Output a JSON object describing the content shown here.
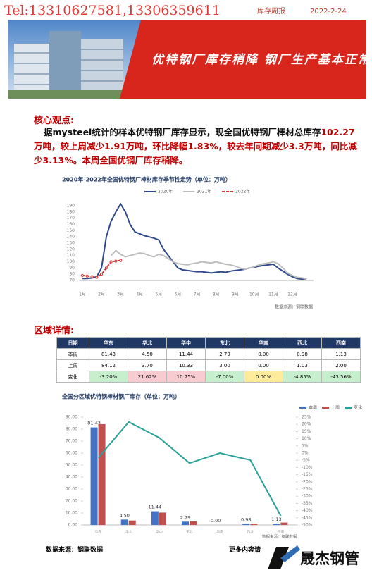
{
  "header": {
    "phone": "Tel:13310627581,13306359611",
    "title": "库存周报",
    "date": "2022-2-24"
  },
  "banner": {
    "headline": "优特钢厂库存稍降 钢厂生产基本正常"
  },
  "core": {
    "heading": "核心观点:",
    "paragraph": [
      {
        "text": "据mysteel统计的样本优特钢厂库存显示，现全国优特钢厂棒材总库存",
        "highlight": false
      },
      {
        "text": "102.27万吨，较上周减少1.91万吨，环比降幅1.83%，较去年同期减少3.3万吨，同比减少3.13%。本周全国优钢厂库存稍降。",
        "highlight": true
      }
    ]
  },
  "chart_data": [
    {
      "type": "line",
      "title": "2020年-2022年全国优特钢厂棒材库存季节性走势（单位：万吨）",
      "categories": [
        "1月",
        null,
        null,
        null,
        "2月",
        null,
        null,
        null,
        "3月",
        null,
        null,
        null,
        "4月",
        null,
        null,
        null,
        "5月",
        null,
        null,
        null,
        "6月",
        null,
        null,
        null,
        "7月",
        null,
        null,
        null,
        "8月",
        null,
        null,
        null,
        "9月",
        null,
        null,
        null,
        "10月",
        null,
        null,
        null,
        "11月",
        null,
        null,
        null,
        "12月",
        null,
        null,
        null
      ],
      "series": [
        {
          "name": "2020年",
          "color": "#2e4a8b",
          "values": [
            73,
            73,
            74,
            76,
            90,
            140,
            165,
            180,
            193,
            180,
            160,
            148,
            145,
            142,
            140,
            138,
            135,
            120,
            110,
            100,
            90,
            87,
            86,
            85,
            84,
            84,
            83,
            82,
            83,
            84,
            83,
            85,
            86,
            87,
            88,
            90,
            91,
            93,
            94,
            95,
            96,
            90,
            85,
            80,
            76,
            73,
            72,
            73
          ]
        },
        {
          "name": "2021年",
          "color": "#bdbdbd",
          "values": [
            null,
            null,
            null,
            null,
            null,
            null,
            110,
            118,
            112,
            108,
            110,
            112,
            114,
            113,
            110,
            108,
            112,
            110,
            105,
            100,
            97,
            96,
            95,
            97,
            98,
            100,
            99,
            98,
            100,
            98,
            96,
            95,
            93,
            90,
            88,
            90,
            92,
            95,
            97,
            98,
            100,
            97,
            90,
            82,
            78,
            75,
            74,
            73
          ]
        },
        {
          "name": "2022年",
          "color": "#e03030",
          "dash": true,
          "markers": true,
          "values": [
            78,
            77,
            76,
            75,
            80,
            90,
            100,
            101,
            102,
            null,
            null,
            null,
            null,
            null,
            null,
            null,
            null,
            null,
            null,
            null,
            null,
            null,
            null,
            null,
            null,
            null,
            null,
            null,
            null,
            null,
            null,
            null,
            null,
            null,
            null,
            null,
            null,
            null,
            null,
            null,
            null,
            null,
            null,
            null,
            null,
            null,
            null,
            null
          ]
        }
      ],
      "ylim": [
        70,
        190
      ],
      "yticks": [
        70,
        80,
        90,
        100,
        110,
        120,
        130,
        140,
        150,
        160,
        170,
        180,
        190
      ],
      "grid": false,
      "source": "数据来源：钢联数据"
    },
    {
      "type": "bar",
      "title": "全国分区域优特钢棒材钢厂库存（单位：万吨）",
      "categories": [
        "华东",
        "华北",
        "华中",
        "东北",
        "华南",
        "西北",
        "西南"
      ],
      "series": [
        {
          "name": "本周",
          "color": "#4472c4",
          "values": [
            81.43,
            4.5,
            11.44,
            2.79,
            0,
            0.98,
            1.13
          ],
          "value_labels": [
            "81.43",
            "4.50",
            "11.44",
            "2.79",
            "0.00",
            "0.98",
            "1.13"
          ]
        },
        {
          "name": "上周",
          "color": "#c0504d",
          "values": [
            84.12,
            3.7,
            10.33,
            3,
            0,
            1.03,
            2
          ]
        },
        {
          "name": "变化",
          "color": "#2aa198",
          "type": "line",
          "axis": "y2",
          "values": [
            -3.2,
            21.62,
            10.75,
            -7,
            0,
            -4.85,
            -43.56
          ]
        }
      ],
      "ylim": [
        0,
        90
      ],
      "yticks": [
        {
          "value": 0,
          "label": "0.00"
        },
        {
          "value": 10,
          "label": "10.00"
        },
        {
          "value": 20,
          "label": "20.00"
        },
        {
          "value": 30,
          "label": "30.00"
        },
        {
          "value": 40,
          "label": "40.00"
        },
        {
          "value": 50,
          "label": "50.00"
        },
        {
          "value": 60,
          "label": "60.00"
        },
        {
          "value": 70,
          "label": "70.00"
        },
        {
          "value": 80,
          "label": "80.00"
        },
        {
          "value": 90,
          "label": "90.00"
        }
      ],
      "y2lim": [
        -50,
        25
      ],
      "y2ticks": [
        {
          "value": 25,
          "label": "25%"
        },
        {
          "value": 20,
          "label": "20%"
        },
        {
          "value": 15,
          "label": "15%"
        },
        {
          "value": 10,
          "label": "10%"
        },
        {
          "value": 5,
          "label": "5%"
        },
        {
          "value": 0,
          "label": "0%"
        },
        {
          "value": -5,
          "label": "-5%"
        },
        {
          "value": -10,
          "label": "-10%"
        },
        {
          "value": -15,
          "label": "-15%"
        },
        {
          "value": -20,
          "label": "-20%"
        },
        {
          "value": -25,
          "label": "-25%"
        },
        {
          "value": -30,
          "label": "-30%"
        },
        {
          "value": -35,
          "label": "-35%"
        },
        {
          "value": -40,
          "label": "-40%"
        },
        {
          "value": -45,
          "label": "-45%"
        },
        {
          "value": -50,
          "label": "-50%"
        }
      ],
      "grid": false,
      "source": "数据来源：钢联数据"
    }
  ],
  "region": {
    "heading": "区域详情:"
  },
  "table": {
    "columns": [
      "日期",
      "华东",
      "华北",
      "华中",
      "东北",
      "华南",
      "西北",
      "西南"
    ],
    "rows": [
      [
        "本周",
        "81.43",
        "4.50",
        "11.44",
        "2.79",
        "0.00",
        "0.98",
        "1.13"
      ],
      [
        "上周",
        "84.12",
        "3.70",
        "10.33",
        "3.00",
        "0.00",
        "1.03",
        "2.00"
      ],
      [
        "变化",
        "-3.20%",
        "21.62%",
        "10.75%",
        "-7.00%",
        "0.00%",
        "-4.85%",
        "-43.56%"
      ]
    ],
    "header_color": "#1f3864",
    "change_colors": [
      "#c6efce",
      "#f8cbd0",
      "#f8cbd0",
      "#c6efce",
      "#ffeb9c",
      "#c6efce",
      "#c6efce"
    ]
  },
  "footer": {
    "source": "数据来源：钢联数据",
    "more": "更多内容请",
    "logo": "晟杰钢管"
  }
}
